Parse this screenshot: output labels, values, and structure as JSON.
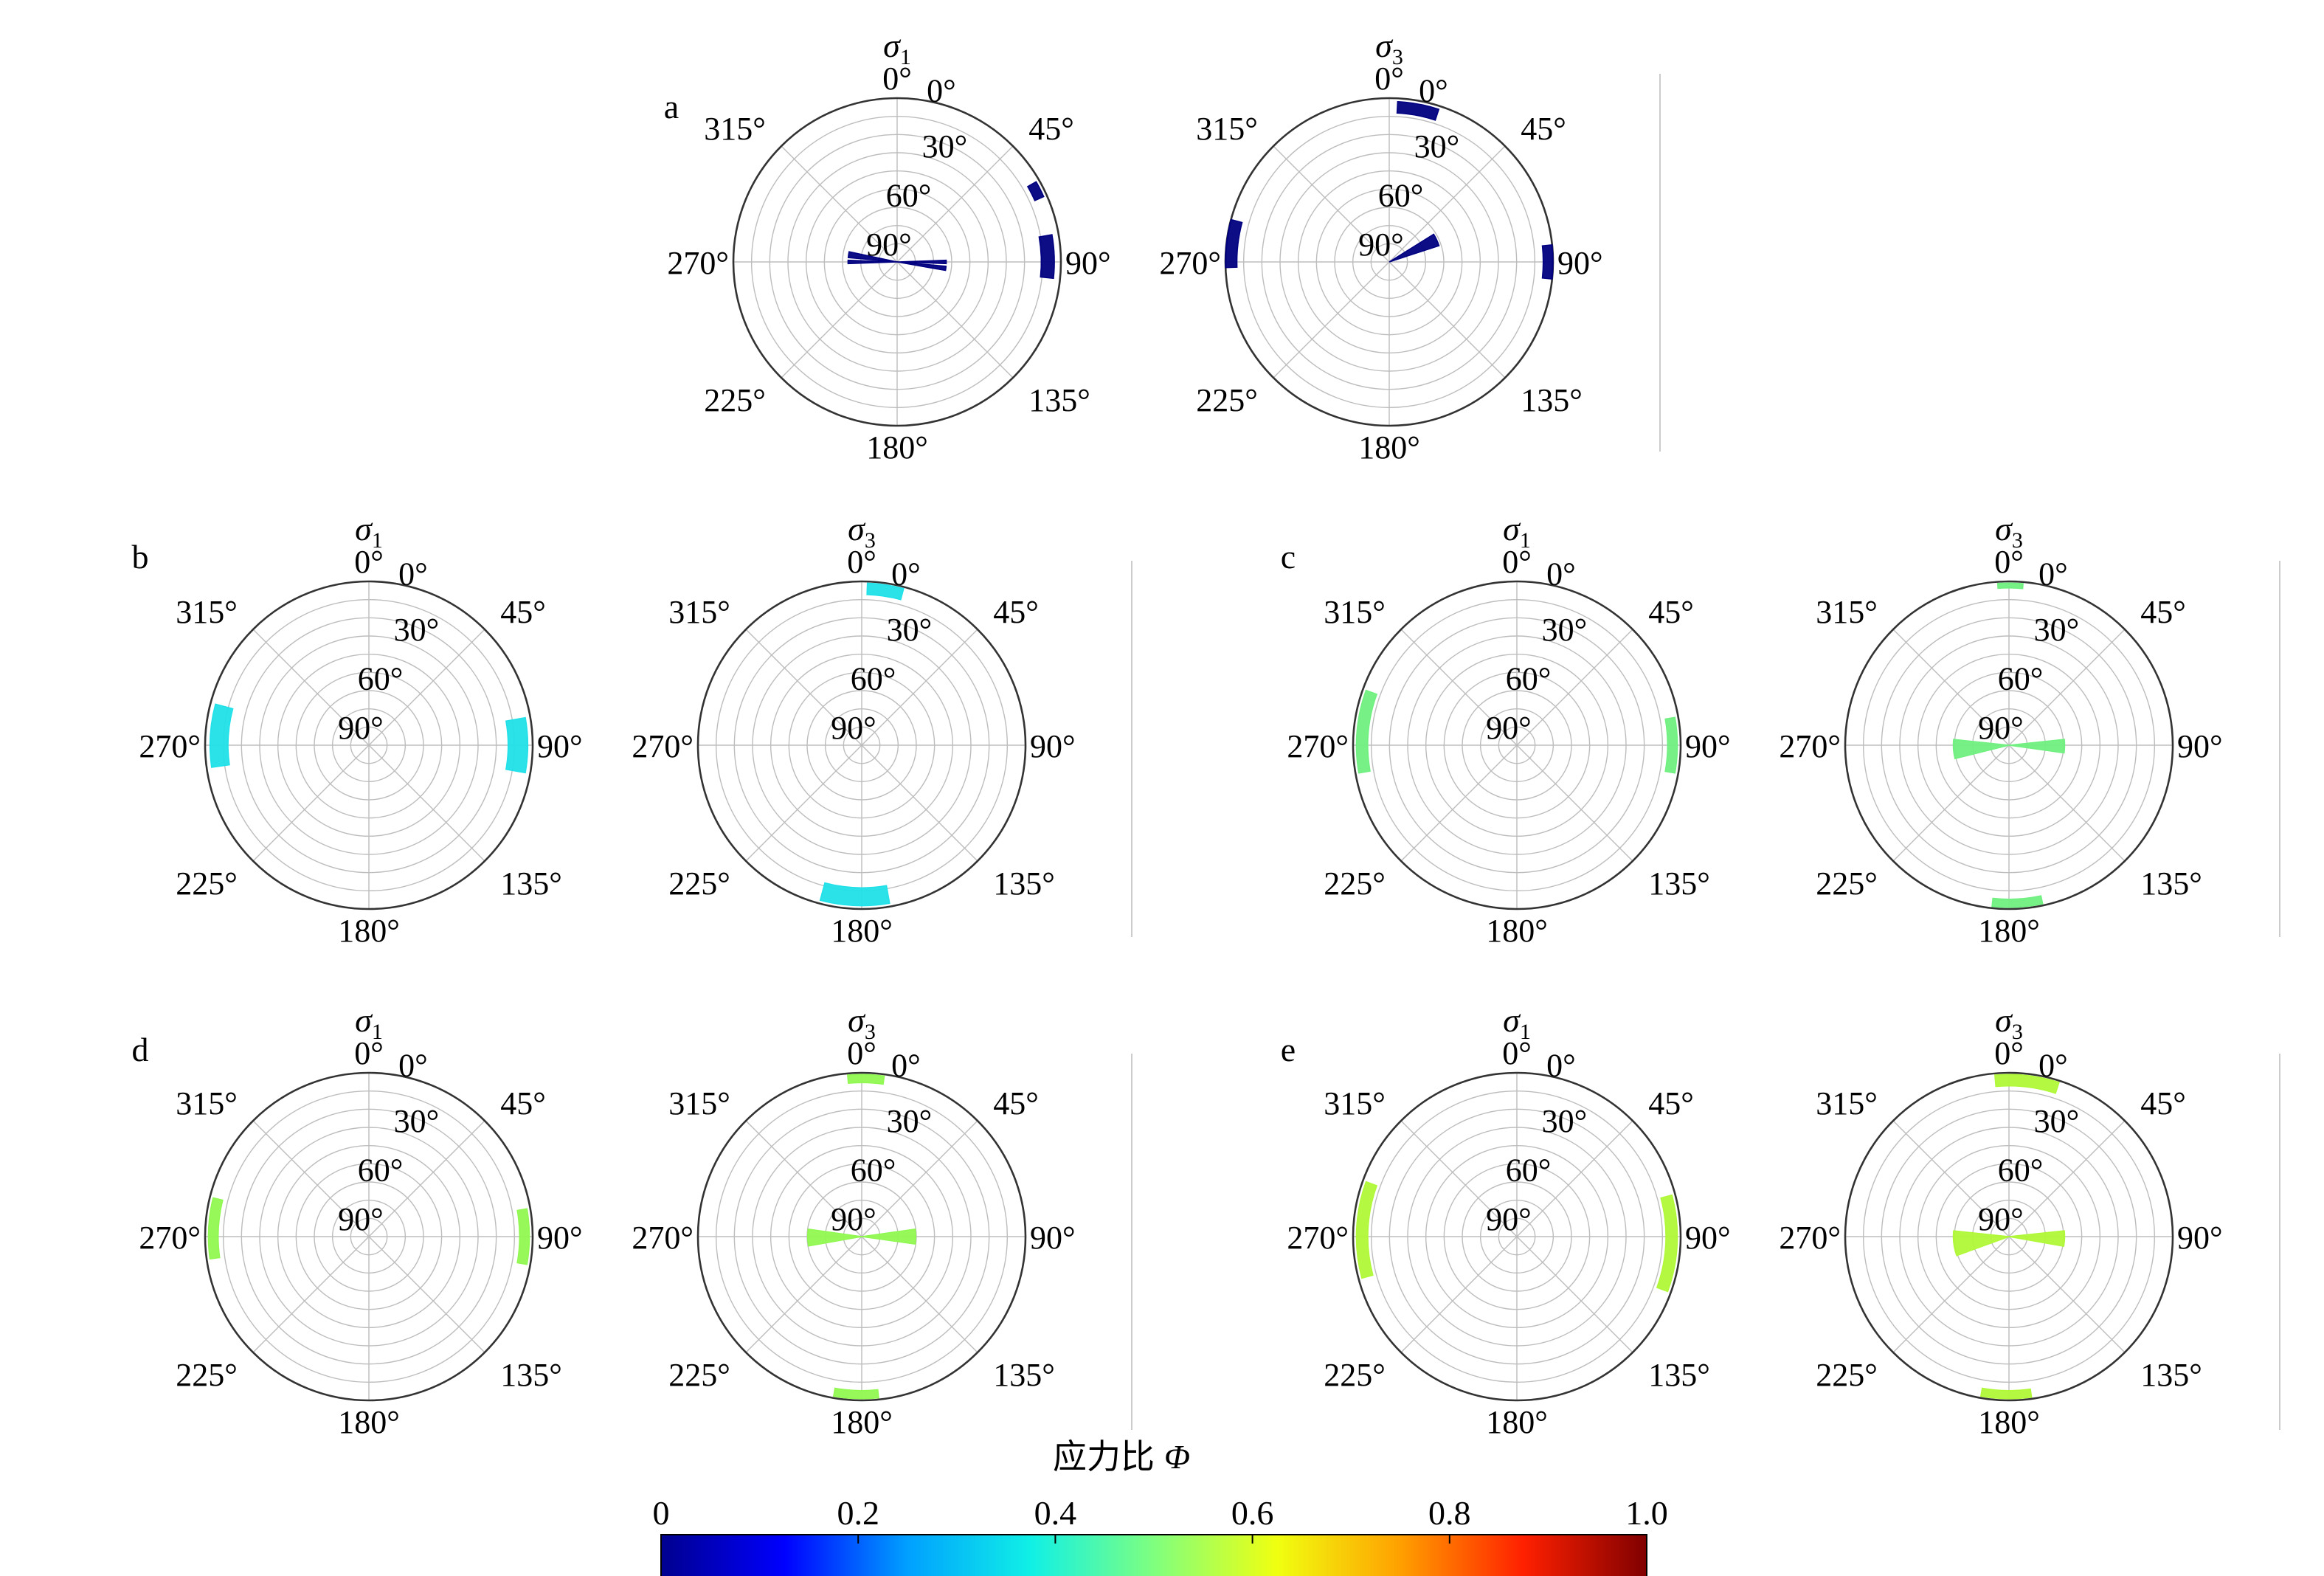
{
  "colors": {
    "grid": "#bdbdbd",
    "outer_ring": "#333333",
    "separator": "#cccccc",
    "colorbar_stops": [
      "#00008f",
      "#0000ff",
      "#00a0ff",
      "#10f0e6",
      "#7fff7f",
      "#f0ff10",
      "#ffa000",
      "#ff2000",
      "#800000"
    ]
  },
  "chart_data": {
    "type": "polar-rose",
    "angular_ticks": [
      "0°",
      "45°",
      "90°",
      "135°",
      "180°",
      "225°",
      "270°",
      "315°"
    ],
    "radial_ticks": [
      "0°",
      "30°",
      "60°",
      "90°"
    ],
    "radial_axis": "plunge",
    "panels": [
      {
        "label": "a",
        "phi": 0.03,
        "color": "#000080",
        "sigma1": [
          {
            "az_from": 268,
            "az_to": 272,
            "r_in": 0.0,
            "r_out": 0.3
          },
          {
            "az_from": 275,
            "az_to": 282,
            "r_in": 0.0,
            "r_out": 0.3
          },
          {
            "az_from": 88,
            "az_to": 92,
            "r_in": 0.0,
            "r_out": 0.3
          },
          {
            "az_from": 95,
            "az_to": 100,
            "r_in": 0.0,
            "r_out": 0.3
          },
          {
            "az_from": 60,
            "az_to": 66,
            "r_in": 0.92,
            "r_out": 0.98
          },
          {
            "az_from": 80,
            "az_to": 96,
            "r_in": 0.88,
            "r_out": 0.96
          }
        ],
        "sigma3": [
          {
            "az_from": 3,
            "az_to": 18,
            "r_in": 0.91,
            "r_out": 0.98
          },
          {
            "az_from": 58,
            "az_to": 72,
            "r_in": 0.0,
            "r_out": 0.32
          },
          {
            "az_from": 268,
            "az_to": 285,
            "r_in": 0.93,
            "r_out": 1.0
          },
          {
            "az_from": 84,
            "az_to": 96,
            "r_in": 0.94,
            "r_out": 1.0
          }
        ]
      },
      {
        "label": "b",
        "phi": 0.36,
        "color": "#20e0e8",
        "sigma1": [
          {
            "az_from": 262,
            "az_to": 285,
            "r_in": 0.86,
            "r_out": 0.97
          },
          {
            "az_from": 80,
            "az_to": 100,
            "r_in": 0.85,
            "r_out": 0.97
          }
        ],
        "sigma3": [
          {
            "az_from": 2,
            "az_to": 15,
            "r_in": 0.92,
            "r_out": 0.99
          },
          {
            "az_from": 170,
            "az_to": 195,
            "r_in": 0.87,
            "r_out": 0.98
          }
        ]
      },
      {
        "label": "c",
        "phi": 0.48,
        "color": "#70f080",
        "sigma1": [
          {
            "az_from": 260,
            "az_to": 290,
            "r_in": 0.91,
            "r_out": 0.98
          },
          {
            "az_from": 80,
            "az_to": 100,
            "r_in": 0.92,
            "r_out": 0.98
          }
        ],
        "sigma3": [
          {
            "az_from": 256,
            "az_to": 276,
            "r_in": 0.0,
            "r_out": 0.34
          },
          {
            "az_from": 84,
            "az_to": 98,
            "r_in": 0.0,
            "r_out": 0.34
          },
          {
            "az_from": 356,
            "az_to": 5,
            "r_in": 0.96,
            "r_out": 0.99
          },
          {
            "az_from": 168,
            "az_to": 186,
            "r_in": 0.94,
            "r_out": 0.99
          }
        ]
      },
      {
        "label": "d",
        "phi": 0.54,
        "color": "#90f850",
        "sigma1": [
          {
            "az_from": 262,
            "az_to": 284,
            "r_in": 0.92,
            "r_out": 0.98
          },
          {
            "az_from": 80,
            "az_to": 100,
            "r_in": 0.92,
            "r_out": 0.98
          }
        ],
        "sigma3": [
          {
            "az_from": 260,
            "az_to": 278,
            "r_in": 0.0,
            "r_out": 0.33
          },
          {
            "az_from": 82,
            "az_to": 98,
            "r_in": 0.0,
            "r_out": 0.33
          },
          {
            "az_from": 355,
            "az_to": 8,
            "r_in": 0.94,
            "r_out": 0.99
          },
          {
            "az_from": 174,
            "az_to": 190,
            "r_in": 0.94,
            "r_out": 0.99
          }
        ]
      },
      {
        "label": "e",
        "phi": 0.58,
        "color": "#b0f838",
        "sigma1": [
          {
            "az_from": 255,
            "az_to": 290,
            "r_in": 0.91,
            "r_out": 0.98
          },
          {
            "az_from": 75,
            "az_to": 110,
            "r_in": 0.91,
            "r_out": 0.98
          }
        ],
        "sigma3": [
          {
            "az_from": 250,
            "az_to": 276,
            "r_in": 0.0,
            "r_out": 0.34
          },
          {
            "az_from": 84,
            "az_to": 100,
            "r_in": 0.0,
            "r_out": 0.34
          },
          {
            "az_from": 355,
            "az_to": 18,
            "r_in": 0.92,
            "r_out": 0.99
          },
          {
            "az_from": 172,
            "az_to": 190,
            "r_in": 0.94,
            "r_out": 0.99
          }
        ]
      }
    ],
    "colorbar": {
      "title_chinese": "应力比",
      "title_symbol": "Φ",
      "range": [
        0,
        1.0
      ],
      "ticks": [
        "0",
        "0.2",
        "0.4",
        "0.6",
        "0.8",
        "1.0"
      ]
    }
  }
}
